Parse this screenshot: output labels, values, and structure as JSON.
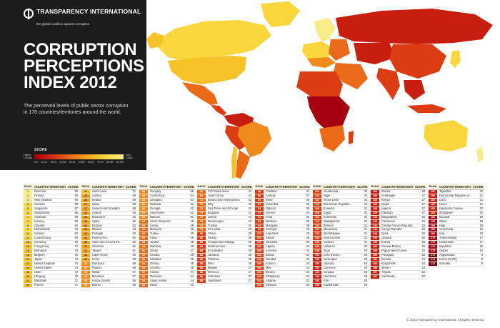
{
  "logo": {
    "name": "TRANSPARENCY INTERNATIONAL",
    "tagline": "the global coalition against corruption"
  },
  "title": "CORRUPTION PERCEPTIONS INDEX 2012",
  "subtitle": "The perceived levels of public sector corruption in 176 countries/territories around the world.",
  "scale": {
    "label": "SCORE",
    "low_label": "Highly Corrupt",
    "high_label": "Very Clean",
    "ticks": [
      "0-9",
      "10-19",
      "20-29",
      "30-39",
      "40-49",
      "50-59",
      "60-69",
      "70-79",
      "80-89",
      "90-100"
    ]
  },
  "table_header": {
    "rank": "RANK",
    "country": "COUNTRY/TERRITORY",
    "score": "SCORE"
  },
  "colors": {
    "s90": "#f8ec86",
    "s80": "#f8d63c",
    "s70": "#f7c128",
    "s60": "#f5a21f",
    "s50": "#f08a1c",
    "s40": "#ea6a17",
    "s30": "#dc3c12",
    "s20": "#c81e10",
    "s10": "#a50010",
    "s0": "#7a0008"
  },
  "columns": [
    [
      [
        "1",
        "Denmark",
        "90"
      ],
      [
        "1",
        "Finland",
        "90"
      ],
      [
        "1",
        "New Zealand",
        "90"
      ],
      [
        "4",
        "Sweden",
        "88"
      ],
      [
        "5",
        "Singapore",
        "87"
      ],
      [
        "6",
        "Switzerland",
        "86"
      ],
      [
        "7",
        "Australia",
        "85"
      ],
      [
        "7",
        "Norway",
        "85"
      ],
      [
        "9",
        "Canada",
        "84"
      ],
      [
        "9",
        "Netherlands",
        "84"
      ],
      [
        "11",
        "Iceland",
        "82"
      ],
      [
        "12",
        "Luxembourg",
        "80"
      ],
      [
        "13",
        "Germany",
        "79"
      ],
      [
        "14",
        "Hong Kong",
        "77"
      ],
      [
        "15",
        "Barbados",
        "76"
      ],
      [
        "16",
        "Belgium",
        "75"
      ],
      [
        "17",
        "Japan",
        "74"
      ],
      [
        "17",
        "United Kingdom",
        "74"
      ],
      [
        "19",
        "United States",
        "73"
      ],
      [
        "20",
        "Chile",
        "72"
      ],
      [
        "20",
        "Uruguay",
        "72"
      ],
      [
        "22",
        "Bahamas",
        "71"
      ],
      [
        "22",
        "France",
        "71"
      ]
    ],
    [
      [
        "22",
        "Saint Lucia",
        "71"
      ],
      [
        "25",
        "Austria",
        "69"
      ],
      [
        "25",
        "Ireland",
        "69"
      ],
      [
        "27",
        "Qatar",
        "68"
      ],
      [
        "27",
        "United Arab Emirates",
        "68"
      ],
      [
        "29",
        "Cyprus",
        "66"
      ],
      [
        "30",
        "Botswana",
        "65"
      ],
      [
        "30",
        "Spain",
        "65"
      ],
      [
        "32",
        "Estonia",
        "64"
      ],
      [
        "33",
        "Bhutan",
        "63"
      ],
      [
        "33",
        "Portugal",
        "63"
      ],
      [
        "33",
        "Puerto Rico",
        "63"
      ],
      [
        "36",
        "Saint Vincent and the Grenadines",
        "62"
      ],
      [
        "37",
        "Slovenia",
        "61"
      ],
      [
        "37",
        "Taiwan",
        "61"
      ],
      [
        "39",
        "Cape Verde",
        "60"
      ],
      [
        "39",
        "Israel",
        "60"
      ],
      [
        "41",
        "Dominica",
        "58"
      ],
      [
        "41",
        "Poland",
        "58"
      ],
      [
        "43",
        "Malta",
        "57"
      ],
      [
        "43",
        "Mauritius",
        "57"
      ],
      [
        "45",
        "Korea (South)",
        "56"
      ],
      [
        "46",
        "Brunei",
        "55"
      ]
    ],
    [
      [
        "46",
        "Hungary",
        "55"
      ],
      [
        "48",
        "Costa Rica",
        "54"
      ],
      [
        "48",
        "Lithuania",
        "54"
      ],
      [
        "50",
        "Rwanda",
        "53"
      ],
      [
        "51",
        "Georgia",
        "52"
      ],
      [
        "51",
        "Seychelles",
        "52"
      ],
      [
        "53",
        "Bahrain",
        "51"
      ],
      [
        "54",
        "Czech Republic",
        "49"
      ],
      [
        "54",
        "Latvia",
        "49"
      ],
      [
        "54",
        "Malaysia",
        "49"
      ],
      [
        "54",
        "Turkey",
        "49"
      ],
      [
        "58",
        "Cuba",
        "48"
      ],
      [
        "58",
        "Jordan",
        "48"
      ],
      [
        "58",
        "Namibia",
        "48"
      ],
      [
        "61",
        "Oman",
        "47"
      ],
      [
        "62",
        "Croatia",
        "46"
      ],
      [
        "62",
        "Slovakia",
        "46"
      ],
      [
        "64",
        "Ghana",
        "45"
      ],
      [
        "64",
        "Lesotho",
        "45"
      ],
      [
        "66",
        "Kuwait",
        "44"
      ],
      [
        "66",
        "Romania",
        "44"
      ],
      [
        "66",
        "Saudi Arabia",
        "44"
      ],
      [
        "69",
        "Brazil",
        "43"
      ]
    ],
    [
      [
        "69",
        "FYR Macedonia",
        "43"
      ],
      [
        "69",
        "South Africa",
        "43"
      ],
      [
        "72",
        "Bosnia and Herzegovina",
        "42"
      ],
      [
        "72",
        "Italy",
        "42"
      ],
      [
        "72",
        "Sao Tome and Principe",
        "42"
      ],
      [
        "75",
        "Bulgaria",
        "41"
      ],
      [
        "75",
        "Liberia",
        "41"
      ],
      [
        "75",
        "Montenegro",
        "41"
      ],
      [
        "75",
        "Tunisia",
        "41"
      ],
      [
        "79",
        "Sri Lanka",
        "40"
      ],
      [
        "80",
        "China",
        "39"
      ],
      [
        "80",
        "Serbia",
        "39"
      ],
      [
        "80",
        "Trinidad and Tobago",
        "39"
      ],
      [
        "83",
        "Burkina Faso",
        "38"
      ],
      [
        "83",
        "El Salvador",
        "38"
      ],
      [
        "83",
        "Jamaica",
        "38"
      ],
      [
        "83",
        "Panama",
        "38"
      ],
      [
        "83",
        "Peru",
        "38"
      ],
      [
        "88",
        "Malawi",
        "37"
      ],
      [
        "88",
        "Morocco",
        "37"
      ],
      [
        "88",
        "Suriname",
        "37"
      ],
      [
        "88",
        "Swaziland",
        "37"
      ]
    ],
    [
      [
        "88",
        "Thailand",
        "37"
      ],
      [
        "88",
        "Zambia",
        "37"
      ],
      [
        "94",
        "Benin",
        "36"
      ],
      [
        "94",
        "Colombia",
        "36"
      ],
      [
        "94",
        "Djibouti",
        "36"
      ],
      [
        "94",
        "Greece",
        "36"
      ],
      [
        "94",
        "India",
        "36"
      ],
      [
        "94",
        "Moldova",
        "36"
      ],
      [
        "94",
        "Mongolia",
        "36"
      ],
      [
        "94",
        "Senegal",
        "36"
      ],
      [
        "102",
        "Argentina",
        "35"
      ],
      [
        "102",
        "Gabon",
        "35"
      ],
      [
        "102",
        "Tanzania",
        "35"
      ],
      [
        "105",
        "Algeria",
        "34"
      ],
      [
        "105",
        "Armenia",
        "34"
      ],
      [
        "105",
        "Bolivia",
        "34"
      ],
      [
        "105",
        "Gambia",
        "34"
      ],
      [
        "105",
        "Kosovo",
        "34"
      ],
      [
        "105",
        "Mali",
        "34"
      ],
      [
        "105",
        "Mexico",
        "34"
      ],
      [
        "105",
        "Philippines",
        "34"
      ],
      [
        "113",
        "Albania",
        "33"
      ],
      [
        "113",
        "Ethiopia",
        "33"
      ]
    ],
    [
      [
        "113",
        "Guatemala",
        "33"
      ],
      [
        "113",
        "Niger",
        "33"
      ],
      [
        "113",
        "Timor-Leste",
        "33"
      ],
      [
        "118",
        "Dominican Republic",
        "32"
      ],
      [
        "118",
        "Ecuador",
        "32"
      ],
      [
        "118",
        "Egypt",
        "32"
      ],
      [
        "118",
        "Indonesia",
        "32"
      ],
      [
        "118",
        "Madagascar",
        "32"
      ],
      [
        "123",
        "Belarus",
        "31"
      ],
      [
        "123",
        "Mauritania",
        "31"
      ],
      [
        "123",
        "Mozambique",
        "31"
      ],
      [
        "123",
        "Sierra Leone",
        "31"
      ],
      [
        "123",
        "Vietnam",
        "31"
      ],
      [
        "128",
        "Lebanon",
        "30"
      ],
      [
        "128",
        "Togo",
        "30"
      ],
      [
        "130",
        "Côte d'Ivoire",
        "29"
      ],
      [
        "130",
        "Nicaragua",
        "29"
      ],
      [
        "130",
        "Uganda",
        "29"
      ],
      [
        "133",
        "Comoros",
        "28"
      ],
      [
        "133",
        "Guyana",
        "28"
      ],
      [
        "133",
        "Honduras",
        "28"
      ],
      [
        "133",
        "Iran",
        "28"
      ],
      [
        "133",
        "Kazakhstan",
        "28"
      ]
    ],
    [
      [
        "133",
        "Russia",
        "28"
      ],
      [
        "139",
        "Azerbaijan",
        "27"
      ],
      [
        "139",
        "Kenya",
        "27"
      ],
      [
        "139",
        "Nepal",
        "27"
      ],
      [
        "139",
        "Nigeria",
        "27"
      ],
      [
        "139",
        "Pakistan",
        "27"
      ],
      [
        "144",
        "Bangladesh",
        "26"
      ],
      [
        "144",
        "Cameroon",
        "26"
      ],
      [
        "144",
        "Central African Republic",
        "26"
      ],
      [
        "144",
        "Congo Republic",
        "26"
      ],
      [
        "144",
        "Syria",
        "26"
      ],
      [
        "144",
        "Ukraine",
        "26"
      ],
      [
        "150",
        "Eritrea",
        "25"
      ],
      [
        "150",
        "Guinea-Bissau",
        "25"
      ],
      [
        "150",
        "Papua New Guinea",
        "25"
      ],
      [
        "150",
        "Paraguay",
        "25"
      ],
      [
        "154",
        "Guinea",
        "24"
      ],
      [
        "154",
        "Kyrgyzstan",
        "24"
      ],
      [
        "156",
        "Yemen",
        "23"
      ],
      [
        "157",
        "Angola",
        "22"
      ],
      [
        "157",
        "Cambodia",
        "22"
      ]
    ],
    [
      [
        "157",
        "Tajikistan",
        "22"
      ],
      [
        "160",
        "Democratic Republic of the Congo",
        "21"
      ],
      [
        "160",
        "Laos",
        "21"
      ],
      [
        "160",
        "Libya",
        "21"
      ],
      [
        "163",
        "Equatorial Guinea",
        "20"
      ],
      [
        "163",
        "Zimbabwe",
        "20"
      ],
      [
        "165",
        "Burundi",
        "19"
      ],
      [
        "165",
        "Chad",
        "19"
      ],
      [
        "165",
        "Haiti",
        "19"
      ],
      [
        "165",
        "Venezuela",
        "19"
      ],
      [
        "169",
        "Iraq",
        "18"
      ],
      [
        "170",
        "Turkmenistan",
        "17"
      ],
      [
        "170",
        "Uzbekistan",
        "17"
      ],
      [
        "172",
        "Myanmar",
        "15"
      ],
      [
        "173",
        "Sudan",
        "13"
      ],
      [
        "174",
        "Afghanistan",
        "8"
      ],
      [
        "174",
        "Korea (North)",
        "8"
      ],
      [
        "174",
        "Somalia",
        "8"
      ]
    ]
  ],
  "copyright": "© 2012 Transparency International. All rights reserved."
}
